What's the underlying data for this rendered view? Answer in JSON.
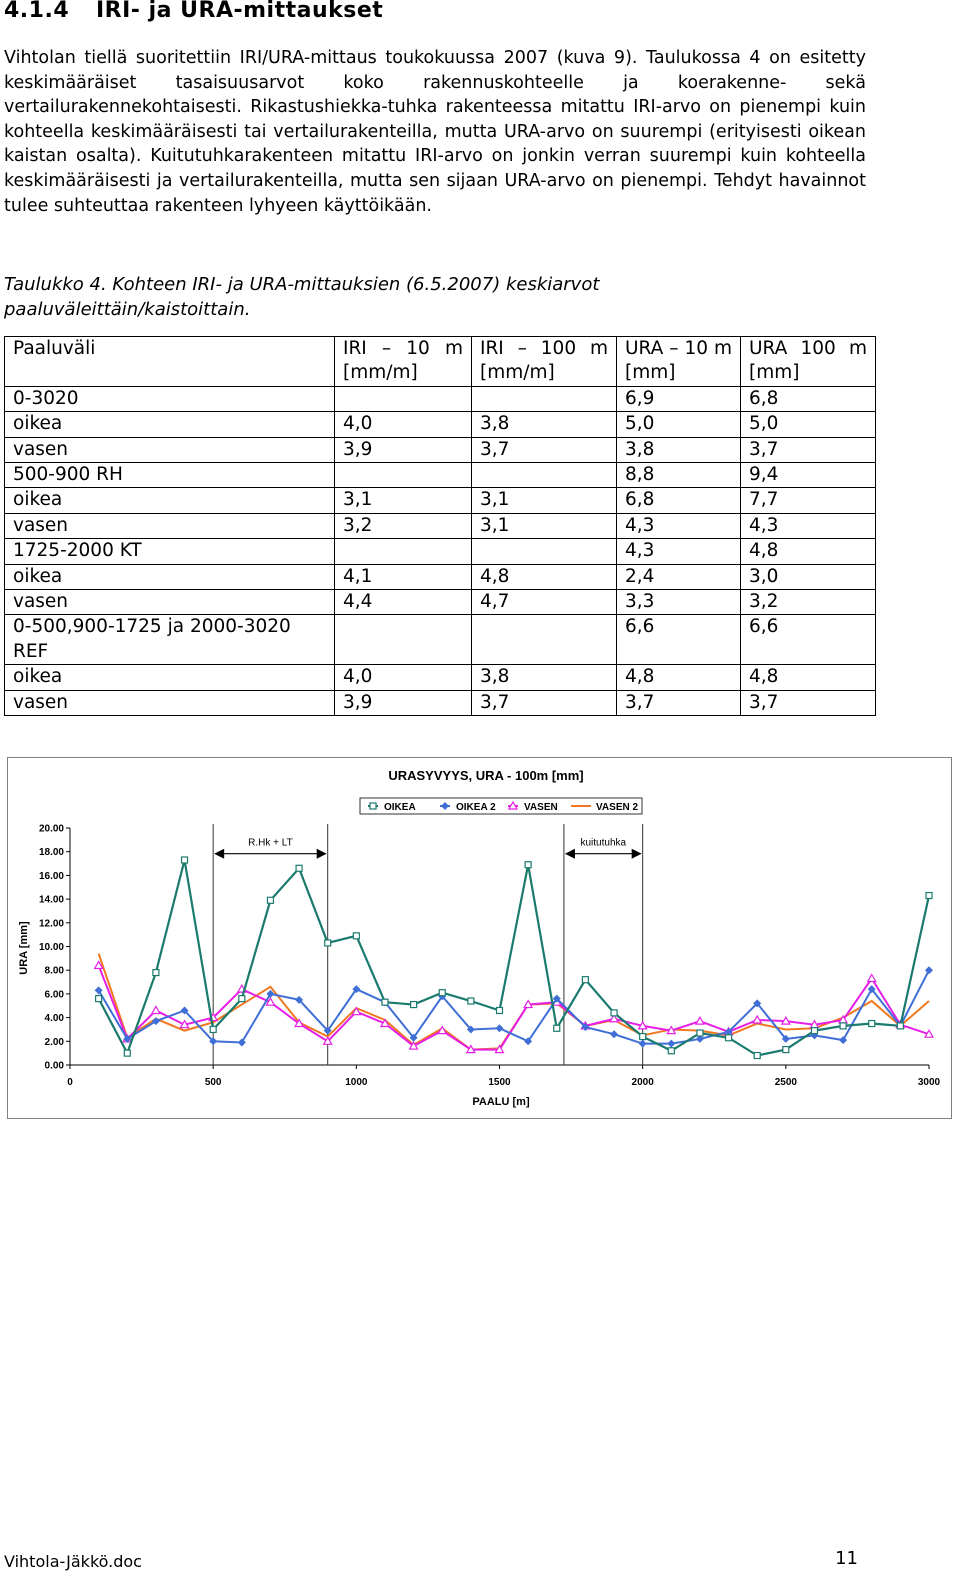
{
  "section": {
    "number": "4.1.4",
    "title": "IRI- ja URA-mittaukset"
  },
  "paragraph": "Vihtolan tiellä suoritettiin IRI/URA-mittaus toukokuussa 2007 (kuva 9). Taulukossa 4 on esitetty keskimääräiset tasaisuusarvot koko rakennuskohteelle ja koerakenne- sekä vertailurakennekohtaisesti. Rikastushiekka-tuhka rakenteessa mitattu IRI-arvo on pienempi kuin kohteella keskimääräisesti tai vertailurakenteilla, mutta URA-arvo on suurempi (erityisesti oikean kaistan osalta). Kuitutuhkarakenteen mitattu IRI-arvo on jonkin verran suurempi kuin kohteella keskimääräisesti ja vertailurakenteilla, mutta sen sijaan URA-arvo on pienempi. Tehdyt havainnot tulee suhteuttaa rakenteen lyhyeen käyttöikään.",
  "caption": "Taulukko 4. Kohteen IRI- ja URA-mittauksien (6.5.2007) keskiarvot paaluväleittäin/kaistoittain.",
  "table": {
    "headers": [
      "Paaluväli",
      "IRI – 10 m [mm/m]",
      "IRI – 100 m [mm/m]",
      "URA – 10 m [mm]",
      "URA 100 m [mm]"
    ],
    "rows": [
      [
        "0-3020",
        "",
        "",
        "6,9",
        "6,8"
      ],
      [
        "oikea",
        "4,0",
        "3,8",
        "5,0",
        "5,0"
      ],
      [
        "vasen",
        "3,9",
        "3,7",
        "3,8",
        "3,7"
      ],
      [
        "500-900 RH",
        "",
        "",
        "8,8",
        "9,4"
      ],
      [
        "oikea",
        "3,1",
        "3,1",
        "6,8",
        "7,7"
      ],
      [
        "vasen",
        "3,2",
        "3,1",
        "4,3",
        "4,3"
      ],
      [
        "1725-2000 KT",
        "",
        "",
        "4,3",
        "4,8"
      ],
      [
        "oikea",
        "4,1",
        "4,8",
        "2,4",
        "3,0"
      ],
      [
        "vasen",
        "4,4",
        "4,7",
        "3,3",
        "3,2"
      ],
      [
        "0-500,900-1725 ja 2000-3020 REF",
        "",
        "",
        "6,6",
        "6,6"
      ],
      [
        "oikea",
        "4,0",
        "3,8",
        "4,8",
        "4,8"
      ],
      [
        "vasen",
        "3,9",
        "3,7",
        "3,7",
        "3,7"
      ]
    ]
  },
  "chart_data": {
    "type": "line",
    "title": "URASYVYYS, URA - 100m [mm]",
    "xlabel": "PAALU [m]",
    "ylabel": "URA [mm]",
    "xlim": [
      0,
      3000
    ],
    "ylim": [
      0,
      20
    ],
    "x_ticks": [
      "0",
      "500",
      "1000",
      "1500",
      "2000",
      "2500",
      "3000"
    ],
    "y_ticks": [
      "0.00",
      "2.00",
      "4.00",
      "6.00",
      "8.00",
      "10.00",
      "12.00",
      "14.00",
      "16.00",
      "18.00",
      "20.00"
    ],
    "grid": false,
    "legend_position": "top",
    "colors": {
      "OIKEA": "#1a7a6e",
      "OIKEA 2": "#3f6fd6",
      "VASEN": "#e61ee6",
      "VASEN 2": "#f07820"
    },
    "annotations": [
      {
        "text": "R.Hk + LT",
        "x_from": 500,
        "x_to": 900,
        "y": 18
      },
      {
        "text": "kuitutuhka",
        "x_from": 1725,
        "x_to": 2000,
        "y": 18
      }
    ],
    "x": [
      100,
      200,
      300,
      400,
      500,
      600,
      700,
      800,
      900,
      1000,
      1100,
      1200,
      1300,
      1400,
      1500,
      1600,
      1700,
      1800,
      1900,
      2000,
      2100,
      2200,
      2300,
      2400,
      2500,
      2600,
      2700,
      2800,
      2900,
      3000
    ],
    "series": [
      {
        "name": "OIKEA",
        "marker": "square",
        "values": [
          5.6,
          1.0,
          7.8,
          17.3,
          3.0,
          5.6,
          13.9,
          16.6,
          10.3,
          10.9,
          5.3,
          5.1,
          6.1,
          5.4,
          4.6,
          16.9,
          3.1,
          7.2,
          4.4,
          2.4,
          1.2,
          2.7,
          2.3,
          0.8,
          1.3,
          2.9,
          3.3,
          3.5,
          3.3,
          14.3
        ]
      },
      {
        "name": "OIKEA 2",
        "marker": "diamond",
        "values": [
          6.3,
          2.2,
          3.7,
          4.6,
          2.0,
          1.9,
          6.0,
          5.5,
          2.9,
          6.4,
          5.3,
          2.3,
          5.8,
          3.0,
          3.1,
          2.0,
          5.6,
          3.2,
          2.6,
          1.8,
          1.8,
          2.2,
          2.8,
          5.2,
          2.2,
          2.5,
          2.1,
          6.4,
          3.3,
          8.0
        ]
      },
      {
        "name": "VASEN",
        "marker": "triangle",
        "values": [
          8.4,
          2.2,
          4.6,
          3.4,
          4.0,
          6.4,
          5.3,
          3.5,
          2.0,
          4.5,
          3.5,
          1.6,
          2.9,
          1.3,
          1.3,
          5.1,
          5.3,
          3.3,
          3.9,
          3.3,
          2.9,
          3.7,
          2.8,
          3.8,
          3.7,
          3.4,
          3.8,
          7.3,
          3.4,
          2.6
        ]
      },
      {
        "name": "VASEN 2",
        "marker": "none",
        "values": [
          9.4,
          2.3,
          3.9,
          2.9,
          3.6,
          5.1,
          6.6,
          3.6,
          2.4,
          4.8,
          3.8,
          1.7,
          3.1,
          1.3,
          1.4,
          5.1,
          5.2,
          3.3,
          3.8,
          2.5,
          3.0,
          2.9,
          2.5,
          3.5,
          3.0,
          3.1,
          4.0,
          5.4,
          3.3,
          5.4
        ]
      }
    ]
  },
  "footer": {
    "filename": "Vihtola-Jäkkö.doc",
    "page": "11"
  }
}
